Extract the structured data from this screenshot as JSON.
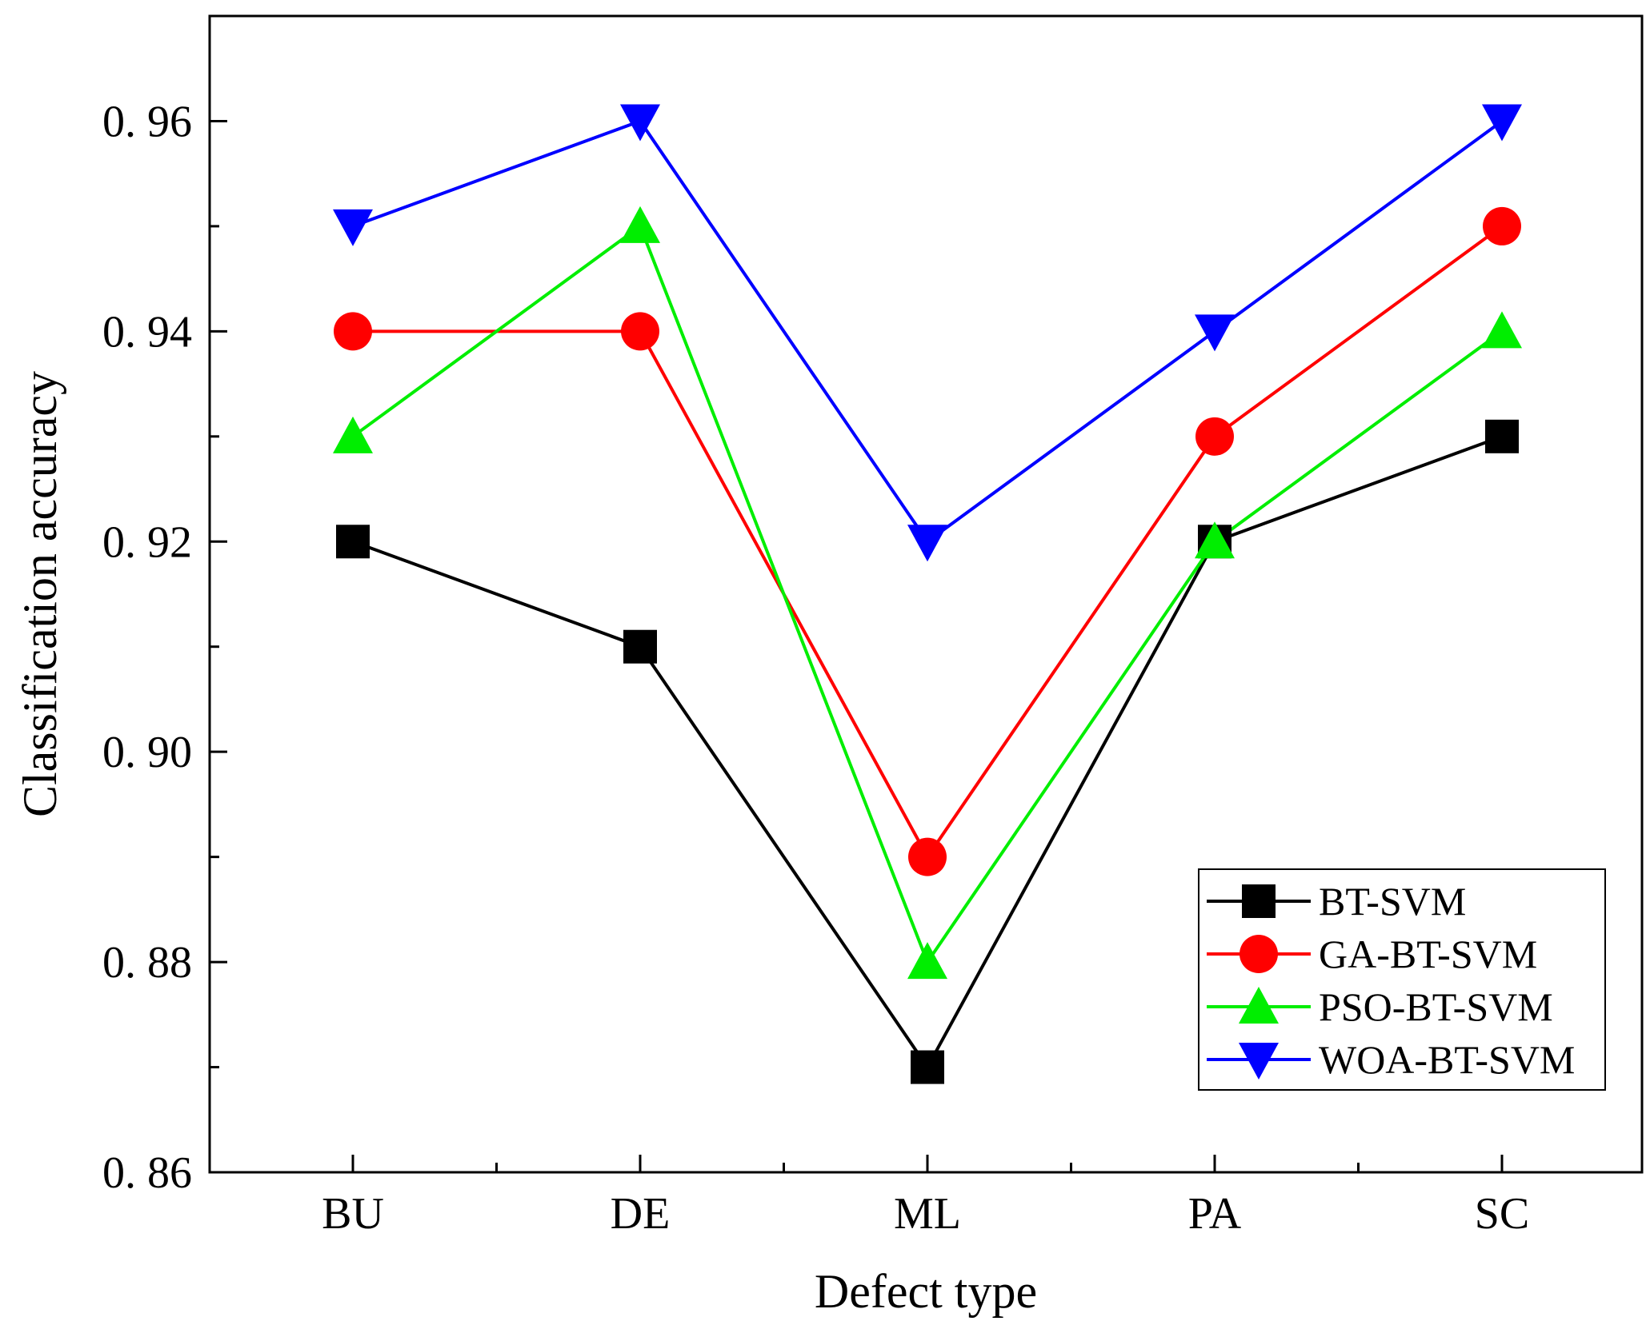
{
  "chart_data": {
    "type": "line",
    "title": "",
    "xlabel": "Defect type",
    "ylabel": "Classification accuracy",
    "categories": [
      "BU",
      "DE",
      "ML",
      "PA",
      "SC"
    ],
    "ylim": [
      0.86,
      0.97
    ],
    "yticks": [
      0.86,
      0.88,
      0.9,
      0.92,
      0.94,
      0.96
    ],
    "ytick_labels": [
      "0. 86",
      "0. 88",
      "0. 90",
      "0. 92",
      "0. 94",
      "0. 96"
    ],
    "grid": false,
    "legend_position": "bottom-right",
    "series": [
      {
        "name": "BT-SVM",
        "color": "#000000",
        "marker": "square",
        "values": [
          0.92,
          0.91,
          0.87,
          0.92,
          0.93
        ]
      },
      {
        "name": "GA-BT-SVM",
        "color": "#ff0000",
        "marker": "circle",
        "values": [
          0.94,
          0.94,
          0.89,
          0.93,
          0.95
        ]
      },
      {
        "name": "PSO-BT-SVM",
        "color": "#00ee00",
        "marker": "triangle-up",
        "values": [
          0.93,
          0.95,
          0.88,
          0.92,
          0.94
        ]
      },
      {
        "name": "WOA-BT-SVM",
        "color": "#0000ff",
        "marker": "triangle-down",
        "values": [
          0.95,
          0.96,
          0.92,
          0.94,
          0.96
        ]
      }
    ]
  }
}
